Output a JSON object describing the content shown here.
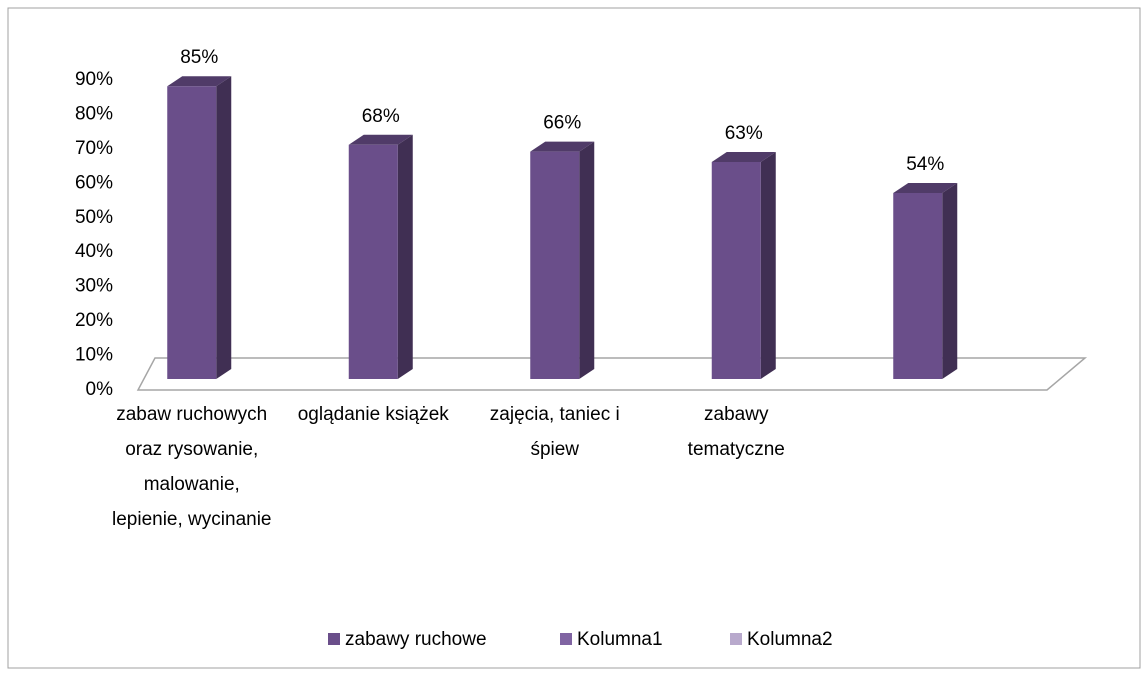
{
  "chart_data": {
    "type": "bar3d",
    "categories": [
      "zabaw ruchowych oraz rysowanie, malowanie, lepienie, wycinanie",
      "oglądanie książek",
      "zajęcia, taniec i śpiew",
      "zabawy tematyczne",
      null
    ],
    "series": [
      {
        "name": "zabawy ruchowe",
        "color": "#6a4e8a",
        "values": [
          85,
          68,
          66,
          63,
          54
        ],
        "value_labels": [
          "85%",
          "68%",
          "66%",
          "63%",
          "54%"
        ]
      },
      {
        "name": "Kolumna1",
        "color": "#8064a2",
        "values": [
          null,
          null,
          null,
          null,
          null
        ]
      },
      {
        "name": "Kolumna2",
        "color": "#b8a9cc",
        "values": [
          null,
          null,
          null,
          null,
          null
        ]
      }
    ],
    "ylim": [
      0,
      90
    ],
    "yticks": [
      {
        "value": 0,
        "label": "0%"
      },
      {
        "value": 10,
        "label": "10%"
      },
      {
        "value": 20,
        "label": "20%"
      },
      {
        "value": 30,
        "label": "30%"
      },
      {
        "value": 40,
        "label": "40%"
      },
      {
        "value": 50,
        "label": "50%"
      },
      {
        "value": 60,
        "label": "60%"
      },
      {
        "value": 70,
        "label": "70%"
      },
      {
        "value": 80,
        "label": "80%"
      },
      {
        "value": 90,
        "label": "90%"
      }
    ],
    "legend": "bottom"
  }
}
